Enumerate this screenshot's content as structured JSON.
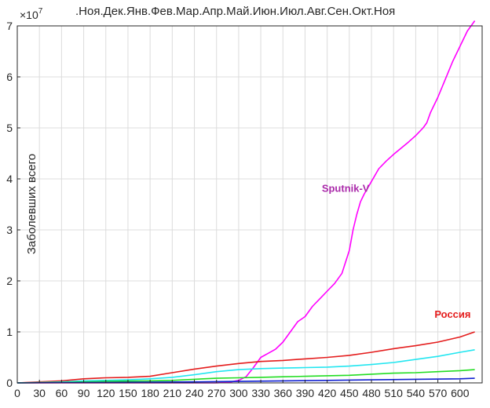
{
  "chart_data": {
    "type": "line",
    "ylabel": "Заболевших всего",
    "y_exponent": "×10",
    "y_exponent_power": "7",
    "top_axis_text": ".Ноя.Дек.Янв.Фев.Мар.Апр.Май.Июн.Июл.Авг.Сен.Окт.Ноя",
    "xlim": [
      0,
      630
    ],
    "ylim": [
      0,
      7
    ],
    "y_scale": 10000000,
    "grid": true,
    "x_ticks": [
      0,
      30,
      60,
      90,
      120,
      150,
      180,
      210,
      240,
      270,
      300,
      330,
      360,
      390,
      420,
      450,
      480,
      510,
      540,
      570,
      600
    ],
    "y_ticks": [
      0,
      1,
      2,
      3,
      4,
      5,
      6,
      7
    ],
    "annotations": [
      {
        "text": "Sputnik-V",
        "color": "#aa2aaa",
        "x": 445,
        "y": 3.75
      },
      {
        "text": "Россия",
        "color": "#e41c1c",
        "x": 590,
        "y": 1.28
      }
    ],
    "series": [
      {
        "color": "#ff00ff",
        "x": [
          0,
          270,
          290,
          300,
          310,
          320,
          330,
          340,
          350,
          360,
          370,
          380,
          390,
          400,
          410,
          420,
          430,
          440,
          450,
          455,
          460,
          465,
          470,
          480,
          490,
          500,
          510,
          520,
          530,
          540,
          550,
          555,
          560,
          570,
          580,
          590,
          600,
          610,
          620
        ],
        "values": [
          0,
          0,
          0.02,
          0.05,
          0.12,
          0.3,
          0.5,
          0.58,
          0.66,
          0.8,
          1.0,
          1.2,
          1.3,
          1.5,
          1.65,
          1.8,
          1.95,
          2.15,
          2.6,
          3.0,
          3.3,
          3.55,
          3.7,
          3.95,
          4.2,
          4.35,
          4.48,
          4.6,
          4.72,
          4.85,
          5.0,
          5.1,
          5.3,
          5.6,
          5.95,
          6.3,
          6.6,
          6.9,
          7.1
        ]
      },
      {
        "color": "#e41c1c",
        "x": [
          0,
          30,
          60,
          90,
          120,
          150,
          180,
          210,
          240,
          270,
          300,
          330,
          360,
          390,
          420,
          450,
          480,
          510,
          540,
          570,
          600,
          620
        ],
        "values": [
          0,
          0.02,
          0.04,
          0.08,
          0.1,
          0.11,
          0.13,
          0.2,
          0.27,
          0.33,
          0.38,
          0.42,
          0.44,
          0.47,
          0.5,
          0.54,
          0.6,
          0.67,
          0.73,
          0.8,
          0.9,
          1.0
        ]
      },
      {
        "color": "#22e6f0",
        "x": [
          0,
          30,
          60,
          90,
          120,
          150,
          180,
          210,
          240,
          270,
          300,
          330,
          360,
          390,
          420,
          450,
          480,
          510,
          540,
          570,
          600,
          620
        ],
        "values": [
          0,
          0.01,
          0.02,
          0.04,
          0.05,
          0.06,
          0.08,
          0.11,
          0.16,
          0.22,
          0.26,
          0.28,
          0.29,
          0.3,
          0.31,
          0.33,
          0.36,
          0.4,
          0.46,
          0.52,
          0.6,
          0.65
        ]
      },
      {
        "color": "#22dd22",
        "x": [
          0,
          30,
          60,
          90,
          120,
          150,
          180,
          210,
          240,
          270,
          300,
          330,
          360,
          390,
          420,
          450,
          480,
          510,
          540,
          570,
          600,
          620
        ],
        "values": [
          0,
          0.005,
          0.01,
          0.02,
          0.03,
          0.035,
          0.04,
          0.05,
          0.07,
          0.09,
          0.1,
          0.11,
          0.12,
          0.13,
          0.14,
          0.15,
          0.17,
          0.19,
          0.2,
          0.22,
          0.24,
          0.26
        ]
      },
      {
        "color": "#1020d0",
        "x": [
          0,
          60,
          120,
          180,
          240,
          300,
          360,
          420,
          480,
          540,
          600,
          620
        ],
        "values": [
          0,
          0.005,
          0.01,
          0.015,
          0.02,
          0.03,
          0.04,
          0.05,
          0.06,
          0.07,
          0.08,
          0.09
        ]
      }
    ]
  }
}
